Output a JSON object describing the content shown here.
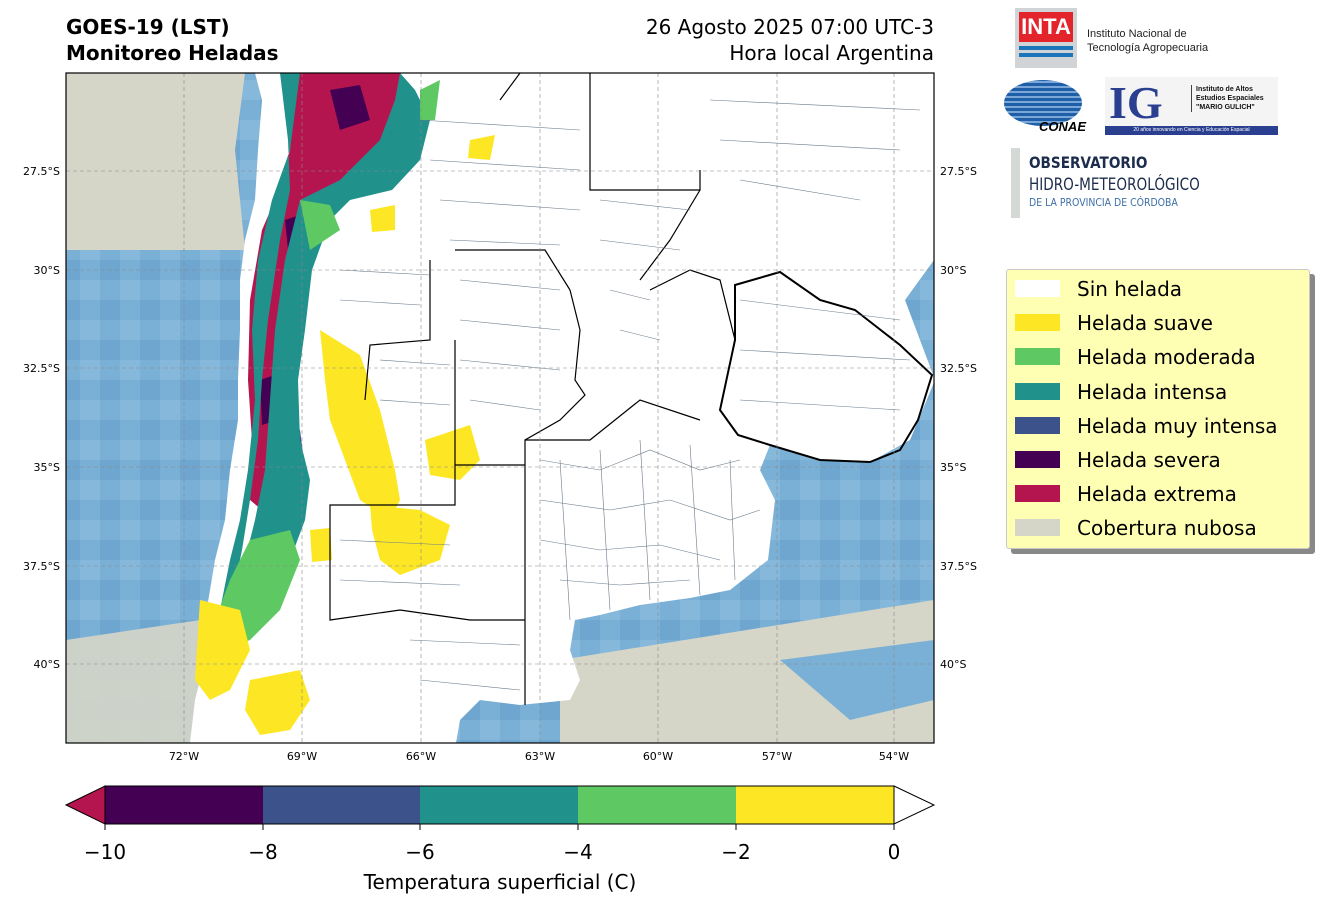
{
  "header": {
    "left_line1": "GOES-19 (LST)",
    "left_line2": "Monitoreo Heladas",
    "right_line1": "26 Agosto 2025 07:00 UTC-3",
    "right_line2": "Hora local Argentina"
  },
  "logos": {
    "inta_acronym": "INTA",
    "inta_name_line1": "Instituto Nacional de",
    "inta_name_line2": "Tecnología Agropecuaria",
    "conae": "CONAE",
    "ig_letters": "IG",
    "ig_line1": "Instituto de Altos",
    "ig_line2": "Estudios Espaciales",
    "ig_line3": "\"MARIO GULICH\"",
    "ig_strip": "20 años innovando en Ciencia y Educación Espacial",
    "obs_line1": "OBSERVATORIO",
    "obs_line2": "HIDRO-METEOROLÓGICO",
    "obs_line3": "DE LA PROVINCIA DE CÓRDOBA"
  },
  "map": {
    "lat_labels": [
      "27.5°S",
      "30°S",
      "32.5°S",
      "35°S",
      "37.5°S",
      "40°S"
    ],
    "lon_labels": [
      "72°W",
      "69°W",
      "66°W",
      "63°W",
      "60°W",
      "57°W",
      "54°W"
    ],
    "colors": {
      "ocean": "#7bb0d6",
      "cloud": "#d6d6c8",
      "land": "#ffffff",
      "suave": "#fde725",
      "moderada": "#5ec962",
      "intensa": "#21918c",
      "muy_intensa": "#3b528b",
      "severa": "#440154",
      "extrema": "#b5154f"
    }
  },
  "legend": [
    {
      "label": "Sin helada",
      "color": "#ffffff"
    },
    {
      "label": "Helada suave",
      "color": "#fde725"
    },
    {
      "label": "Helada moderada",
      "color": "#5ec962"
    },
    {
      "label": "Helada intensa",
      "color": "#21918c"
    },
    {
      "label": "Helada muy intensa",
      "color": "#3b528b"
    },
    {
      "label": "Helada severa",
      "color": "#440154"
    },
    {
      "label": "Helada extrema",
      "color": "#b5154f"
    },
    {
      "label": "Cobertura nubosa",
      "color": "#d6d6c8"
    }
  ],
  "colorbar": {
    "label": "Temperatura superficial (C)",
    "ticks": [
      "−10",
      "−8",
      "−6",
      "−4",
      "−2",
      "0"
    ],
    "colors": [
      "#440154",
      "#3b528b",
      "#21918c",
      "#5ec962",
      "#fde725"
    ],
    "under_color": "#b5154f",
    "over_color": "#ffffff"
  }
}
